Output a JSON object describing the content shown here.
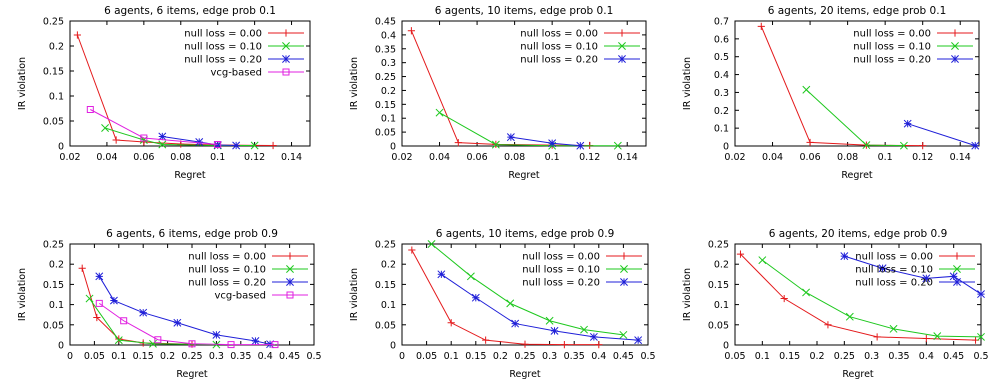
{
  "chart_data": [
    {
      "type": "line",
      "title": "6 agents, 6 items, edge prob 0.1",
      "xlabel": "Regret",
      "ylabel": "IR violation",
      "xlim": [
        0.02,
        0.15
      ],
      "ylim": [
        0,
        0.25
      ],
      "xticks": [
        0.02,
        0.04,
        0.06,
        0.08,
        0.1,
        0.12,
        0.14
      ],
      "yticks": [
        0,
        0.05,
        0.1,
        0.15,
        0.2,
        0.25
      ],
      "grid": false,
      "legend": "top-right",
      "series": [
        {
          "name": "null loss = 0.00",
          "color": "#e41a1c",
          "marker": "plus",
          "points": [
            [
              0.024,
              0.222
            ],
            [
              0.045,
              0.012
            ],
            [
              0.06,
              0.008
            ],
            [
              0.08,
              0.004
            ],
            [
              0.1,
              0.002
            ],
            [
              0.13,
              0.001
            ]
          ]
        },
        {
          "name": "null loss = 0.10",
          "color": "#1ec81e",
          "marker": "x",
          "points": [
            [
              0.039,
              0.036
            ],
            [
              0.06,
              0.012
            ],
            [
              0.07,
              0.003
            ],
            [
              0.1,
              0.001
            ],
            [
              0.12,
              0.001
            ]
          ]
        },
        {
          "name": "null loss = 0.20",
          "color": "#1f1fd8",
          "marker": "star",
          "points": [
            [
              0.07,
              0.019
            ],
            [
              0.09,
              0.008
            ],
            [
              0.1,
              0.002
            ],
            [
              0.11,
              0.001
            ]
          ]
        },
        {
          "name": "vcg-based",
          "color": "#e020e0",
          "marker": "square",
          "points": [
            [
              0.031,
              0.073
            ],
            [
              0.06,
              0.016
            ],
            [
              0.1,
              0.003
            ]
          ]
        }
      ]
    },
    {
      "type": "line",
      "title": "6 agents, 10 items, edge prob 0.1",
      "xlabel": "Regret",
      "ylabel": "IR violation",
      "xlim": [
        0.02,
        0.15
      ],
      "ylim": [
        0,
        0.45
      ],
      "xticks": [
        0.02,
        0.04,
        0.06,
        0.08,
        0.1,
        0.12,
        0.14
      ],
      "yticks": [
        0,
        0.05,
        0.1,
        0.15,
        0.2,
        0.25,
        0.3,
        0.35,
        0.4,
        0.45
      ],
      "grid": false,
      "legend": "top-right",
      "series": [
        {
          "name": "null loss = 0.00",
          "color": "#e41a1c",
          "marker": "plus",
          "points": [
            [
              0.025,
              0.415
            ],
            [
              0.05,
              0.012
            ],
            [
              0.07,
              0.006
            ],
            [
              0.1,
              0.003
            ],
            [
              0.12,
              0.002
            ]
          ]
        },
        {
          "name": "null loss = 0.10",
          "color": "#1ec81e",
          "marker": "x",
          "points": [
            [
              0.04,
              0.12
            ],
            [
              0.07,
              0.005
            ],
            [
              0.1,
              0.001
            ],
            [
              0.135,
              0.001
            ]
          ]
        },
        {
          "name": "null loss = 0.20",
          "color": "#1f1fd8",
          "marker": "star",
          "points": [
            [
              0.078,
              0.032
            ],
            [
              0.1,
              0.01
            ],
            [
              0.115,
              0.001
            ]
          ]
        }
      ]
    },
    {
      "type": "line",
      "title": "6 agents, 20 items, edge prob 0.1",
      "xlabel": "Regret",
      "ylabel": "IR violation",
      "xlim": [
        0.02,
        0.15
      ],
      "ylim": [
        0,
        0.7
      ],
      "xticks": [
        0.02,
        0.04,
        0.06,
        0.08,
        0.1,
        0.12,
        0.14
      ],
      "yticks": [
        0,
        0.1,
        0.2,
        0.3,
        0.4,
        0.5,
        0.6,
        0.7
      ],
      "grid": false,
      "legend": "top-right",
      "series": [
        {
          "name": "null loss = 0.00",
          "color": "#e41a1c",
          "marker": "plus",
          "points": [
            [
              0.034,
              0.67
            ],
            [
              0.06,
              0.02
            ],
            [
              0.09,
              0.005
            ],
            [
              0.12,
              0.002
            ]
          ]
        },
        {
          "name": "null loss = 0.10",
          "color": "#1ec81e",
          "marker": "x",
          "points": [
            [
              0.058,
              0.315
            ],
            [
              0.09,
              0.005
            ],
            [
              0.11,
              0.002
            ]
          ]
        },
        {
          "name": "null loss = 0.20",
          "color": "#1f1fd8",
          "marker": "star",
          "points": [
            [
              0.112,
              0.125
            ],
            [
              0.148,
              0.002
            ]
          ]
        }
      ]
    },
    {
      "type": "line",
      "title": "6 agents, 6 items, edge prob 0.9",
      "xlabel": "Regret",
      "ylabel": "IR violation",
      "xlim": [
        0,
        0.5
      ],
      "ylim": [
        0,
        0.25
      ],
      "xticks": [
        0,
        0.05,
        0.1,
        0.15,
        0.2,
        0.25,
        0.3,
        0.35,
        0.4,
        0.45,
        0.5
      ],
      "yticks": [
        0,
        0.05,
        0.1,
        0.15,
        0.2,
        0.25
      ],
      "grid": false,
      "legend": "top-right",
      "series": [
        {
          "name": "null loss = 0.00",
          "color": "#e41a1c",
          "marker": "plus",
          "points": [
            [
              0.025,
              0.19
            ],
            [
              0.055,
              0.068
            ],
            [
              0.1,
              0.015
            ],
            [
              0.15,
              0.005
            ],
            [
              0.25,
              0.002
            ]
          ]
        },
        {
          "name": "null loss = 0.10",
          "color": "#1ec81e",
          "marker": "x",
          "points": [
            [
              0.04,
              0.115
            ],
            [
              0.1,
              0.012
            ],
            [
              0.17,
              0.003
            ],
            [
              0.3,
              0.001
            ]
          ]
        },
        {
          "name": "null loss = 0.20",
          "color": "#1f1fd8",
          "marker": "star",
          "points": [
            [
              0.06,
              0.17
            ],
            [
              0.09,
              0.11
            ],
            [
              0.15,
              0.08
            ],
            [
              0.22,
              0.055
            ],
            [
              0.3,
              0.025
            ],
            [
              0.38,
              0.01
            ],
            [
              0.41,
              0.002
            ]
          ]
        },
        {
          "name": "vcg-based",
          "color": "#e020e0",
          "marker": "square",
          "points": [
            [
              0.06,
              0.103
            ],
            [
              0.11,
              0.06
            ],
            [
              0.18,
              0.013
            ],
            [
              0.25,
              0.003
            ],
            [
              0.33,
              0.001
            ],
            [
              0.42,
              0.001
            ]
          ]
        }
      ]
    },
    {
      "type": "line",
      "title": "6 agents, 10 items, edge prob 0.9",
      "xlabel": "Regret",
      "ylabel": "IR violation",
      "xlim": [
        0,
        0.5
      ],
      "ylim": [
        0,
        0.25
      ],
      "xticks": [
        0,
        0.05,
        0.1,
        0.15,
        0.2,
        0.25,
        0.3,
        0.35,
        0.4,
        0.45,
        0.5
      ],
      "yticks": [
        0,
        0.05,
        0.1,
        0.15,
        0.2,
        0.25
      ],
      "grid": false,
      "legend": "top-right",
      "series": [
        {
          "name": "null loss = 0.00",
          "color": "#e41a1c",
          "marker": "plus",
          "points": [
            [
              0.02,
              0.235
            ],
            [
              0.1,
              0.055
            ],
            [
              0.17,
              0.012
            ],
            [
              0.25,
              0.002
            ],
            [
              0.33,
              0.001
            ],
            [
              0.4,
              0.001
            ]
          ]
        },
        {
          "name": "null loss = 0.10",
          "color": "#1ec81e",
          "marker": "x",
          "points": [
            [
              0.06,
              0.25
            ],
            [
              0.14,
              0.17
            ],
            [
              0.22,
              0.103
            ],
            [
              0.3,
              0.06
            ],
            [
              0.37,
              0.038
            ],
            [
              0.45,
              0.025
            ]
          ]
        },
        {
          "name": "null loss = 0.20",
          "color": "#1f1fd8",
          "marker": "star",
          "points": [
            [
              0.08,
              0.175
            ],
            [
              0.15,
              0.117
            ],
            [
              0.23,
              0.053
            ],
            [
              0.31,
              0.035
            ],
            [
              0.39,
              0.02
            ],
            [
              0.48,
              0.012
            ]
          ]
        }
      ]
    },
    {
      "type": "line",
      "title": "6 agents, 20 items, edge prob 0.9",
      "xlabel": "Regret",
      "ylabel": "IR violation",
      "xlim": [
        0.05,
        0.5
      ],
      "ylim": [
        0,
        0.25
      ],
      "xticks": [
        0.05,
        0.1,
        0.15,
        0.2,
        0.25,
        0.3,
        0.35,
        0.4,
        0.45,
        0.5
      ],
      "yticks": [
        0,
        0.05,
        0.1,
        0.15,
        0.2,
        0.25
      ],
      "grid": false,
      "legend": "top-right",
      "series": [
        {
          "name": "null loss = 0.00",
          "color": "#e41a1c",
          "marker": "plus",
          "points": [
            [
              0.06,
              0.225
            ],
            [
              0.14,
              0.115
            ],
            [
              0.22,
              0.05
            ],
            [
              0.31,
              0.02
            ],
            [
              0.4,
              0.016
            ],
            [
              0.49,
              0.012
            ]
          ]
        },
        {
          "name": "null loss = 0.10",
          "color": "#1ec81e",
          "marker": "x",
          "points": [
            [
              0.1,
              0.21
            ],
            [
              0.18,
              0.13
            ],
            [
              0.26,
              0.07
            ],
            [
              0.34,
              0.04
            ],
            [
              0.42,
              0.022
            ],
            [
              0.5,
              0.02
            ]
          ]
        },
        {
          "name": "null loss = 0.20",
          "color": "#1f1fd8",
          "marker": "star",
          "points": [
            [
              0.25,
              0.22
            ],
            [
              0.32,
              0.19
            ],
            [
              0.4,
              0.165
            ],
            [
              0.45,
              0.17
            ],
            [
              0.5,
              0.126
            ]
          ]
        }
      ]
    }
  ]
}
